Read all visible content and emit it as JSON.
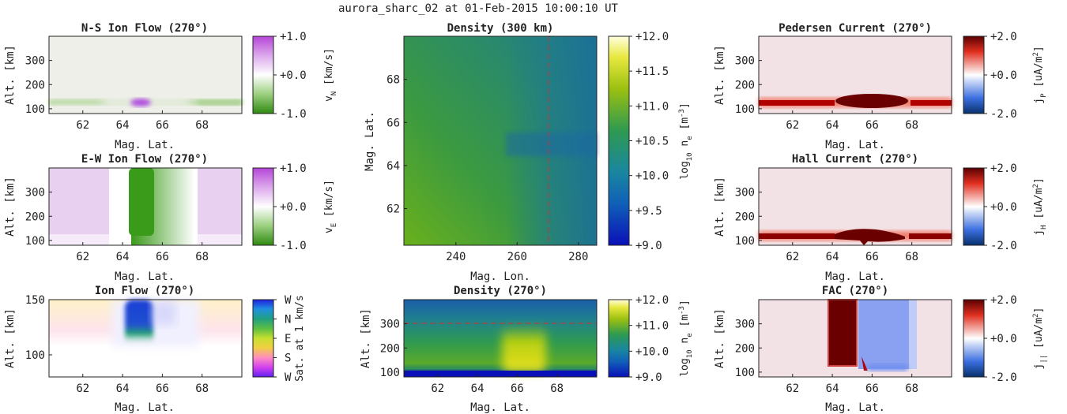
{
  "suptitle": "aurora_sharc_02 at 01-Feb-2015 10:00:10 UT",
  "colors": {
    "green": "#3a9a1a",
    "purple": "#c06ee0",
    "darkred": "#6b0000",
    "blue": "#1c3fd6",
    "mustard": "#c8c800",
    "teal": "#1f7a8c"
  },
  "chart_data": [
    {
      "id": "ns",
      "type": "heatmap",
      "title": "N-S Ion Flow (270°)",
      "xlabel": "Mag. Lat.",
      "ylabel": "Alt. [km]",
      "xlim": [
        60.3,
        70
      ],
      "ylim": [
        80,
        400
      ],
      "xticks": [
        "62",
        "64",
        "66",
        "68"
      ],
      "yticks": [
        "100",
        "200",
        "300"
      ],
      "colorbar": {
        "label": "v_N [km/s]",
        "ticks": [
          "+1.0",
          "+0.0",
          "-1.0"
        ],
        "range": [
          -1,
          1
        ],
        "map": "green-white-purple"
      }
    },
    {
      "id": "ew",
      "type": "heatmap",
      "title": "E-W Ion Flow (270°)",
      "xlabel": "Mag. Lat.",
      "ylabel": "Alt. [km]",
      "xlim": [
        60.3,
        70
      ],
      "ylim": [
        80,
        400
      ],
      "xticks": [
        "62",
        "64",
        "66",
        "68"
      ],
      "yticks": [
        "100",
        "200",
        "300"
      ],
      "colorbar": {
        "label": "v_E [km/s]",
        "ticks": [
          "+1.0",
          "+0.0",
          "-1.0"
        ],
        "range": [
          -1,
          1
        ],
        "map": "green-white-purple"
      }
    },
    {
      "id": "ion",
      "type": "heatmap",
      "title": "Ion Flow (270°)",
      "xlabel": "Mag. Lat.",
      "ylabel": "Alt. [km]",
      "xlim": [
        60.3,
        70
      ],
      "ylim": [
        80,
        150
      ],
      "xticks": [
        "62",
        "64",
        "66",
        "68"
      ],
      "yticks": [
        "100",
        "150"
      ],
      "colorbar": {
        "label": "Sat. at 1 km/s",
        "ticks": [
          "W",
          "N",
          "E",
          "S",
          "W"
        ],
        "map": "direction"
      }
    },
    {
      "id": "dmap",
      "type": "heatmap",
      "title": "Density (300 km)",
      "xlabel": "Mag. Lon.",
      "ylabel": "Mag. Lat.",
      "xlim": [
        223,
        286
      ],
      "ylim": [
        60.3,
        70
      ],
      "xticks": [
        "240",
        "260",
        "280"
      ],
      "yticks": [
        "62",
        "64",
        "66",
        "68"
      ],
      "vline": 270,
      "colorbar": {
        "label": "log10 ne [m-3]",
        "ticks": [
          "+12.0",
          "+11.5",
          "+11.0",
          "+10.5",
          "+10.0",
          "+9.5",
          "+9.0"
        ],
        "range": [
          9,
          12
        ],
        "map": "blue-green-yellow"
      }
    },
    {
      "id": "dalt",
      "type": "heatmap",
      "title": "Density (270°)",
      "xlabel": "Mag. Lat.",
      "ylabel": "Alt. [km]",
      "xlim": [
        60.3,
        70
      ],
      "ylim": [
        80,
        400
      ],
      "xticks": [
        "62",
        "64",
        "66",
        "68"
      ],
      "yticks": [
        "100",
        "200",
        "300"
      ],
      "hline": 300,
      "colorbar": {
        "label": "log10 ne [m-3]",
        "ticks": [
          "+12.0",
          "+11.0",
          "+10.0",
          "+9.0"
        ],
        "range": [
          9,
          12
        ],
        "map": "blue-green-yellow"
      }
    },
    {
      "id": "ped",
      "type": "heatmap",
      "title": "Pedersen Current (270°)",
      "xlabel": "Mag. Lat.",
      "ylabel": "Alt. [km]",
      "xlim": [
        60.3,
        70
      ],
      "ylim": [
        80,
        400
      ],
      "xticks": [
        "62",
        "64",
        "66",
        "68"
      ],
      "yticks": [
        "100",
        "200",
        "300"
      ],
      "colorbar": {
        "label": "jP [uA/m2]",
        "ticks": [
          "+2.0",
          "+0.0",
          "-2.0"
        ],
        "range": [
          -2,
          2
        ],
        "map": "blue-white-red"
      }
    },
    {
      "id": "hall",
      "type": "heatmap",
      "title": "Hall Current (270°)",
      "xlabel": "Mag. Lat.",
      "ylabel": "Alt. [km]",
      "xlim": [
        60.3,
        70
      ],
      "ylim": [
        80,
        400
      ],
      "xticks": [
        "62",
        "64",
        "66",
        "68"
      ],
      "yticks": [
        "100",
        "200",
        "300"
      ],
      "colorbar": {
        "label": "jH [uA/m2]",
        "ticks": [
          "+2.0",
          "+0.0",
          "-2.0"
        ],
        "range": [
          -2,
          2
        ],
        "map": "blue-white-red"
      }
    },
    {
      "id": "fac",
      "type": "heatmap",
      "title": "FAC (270°)",
      "xlabel": "Mag. Lat.",
      "ylabel": "Alt. [km]",
      "xlim": [
        60.3,
        70
      ],
      "ylim": [
        80,
        400
      ],
      "xticks": [
        "62",
        "64",
        "66",
        "68"
      ],
      "yticks": [
        "100",
        "200",
        "300"
      ],
      "colorbar": {
        "label": "j|| [uA/m2]",
        "ticks": [
          "+2.0",
          "+0.0",
          "-2.0"
        ],
        "range": [
          -2,
          2
        ],
        "map": "blue-white-red"
      }
    }
  ]
}
